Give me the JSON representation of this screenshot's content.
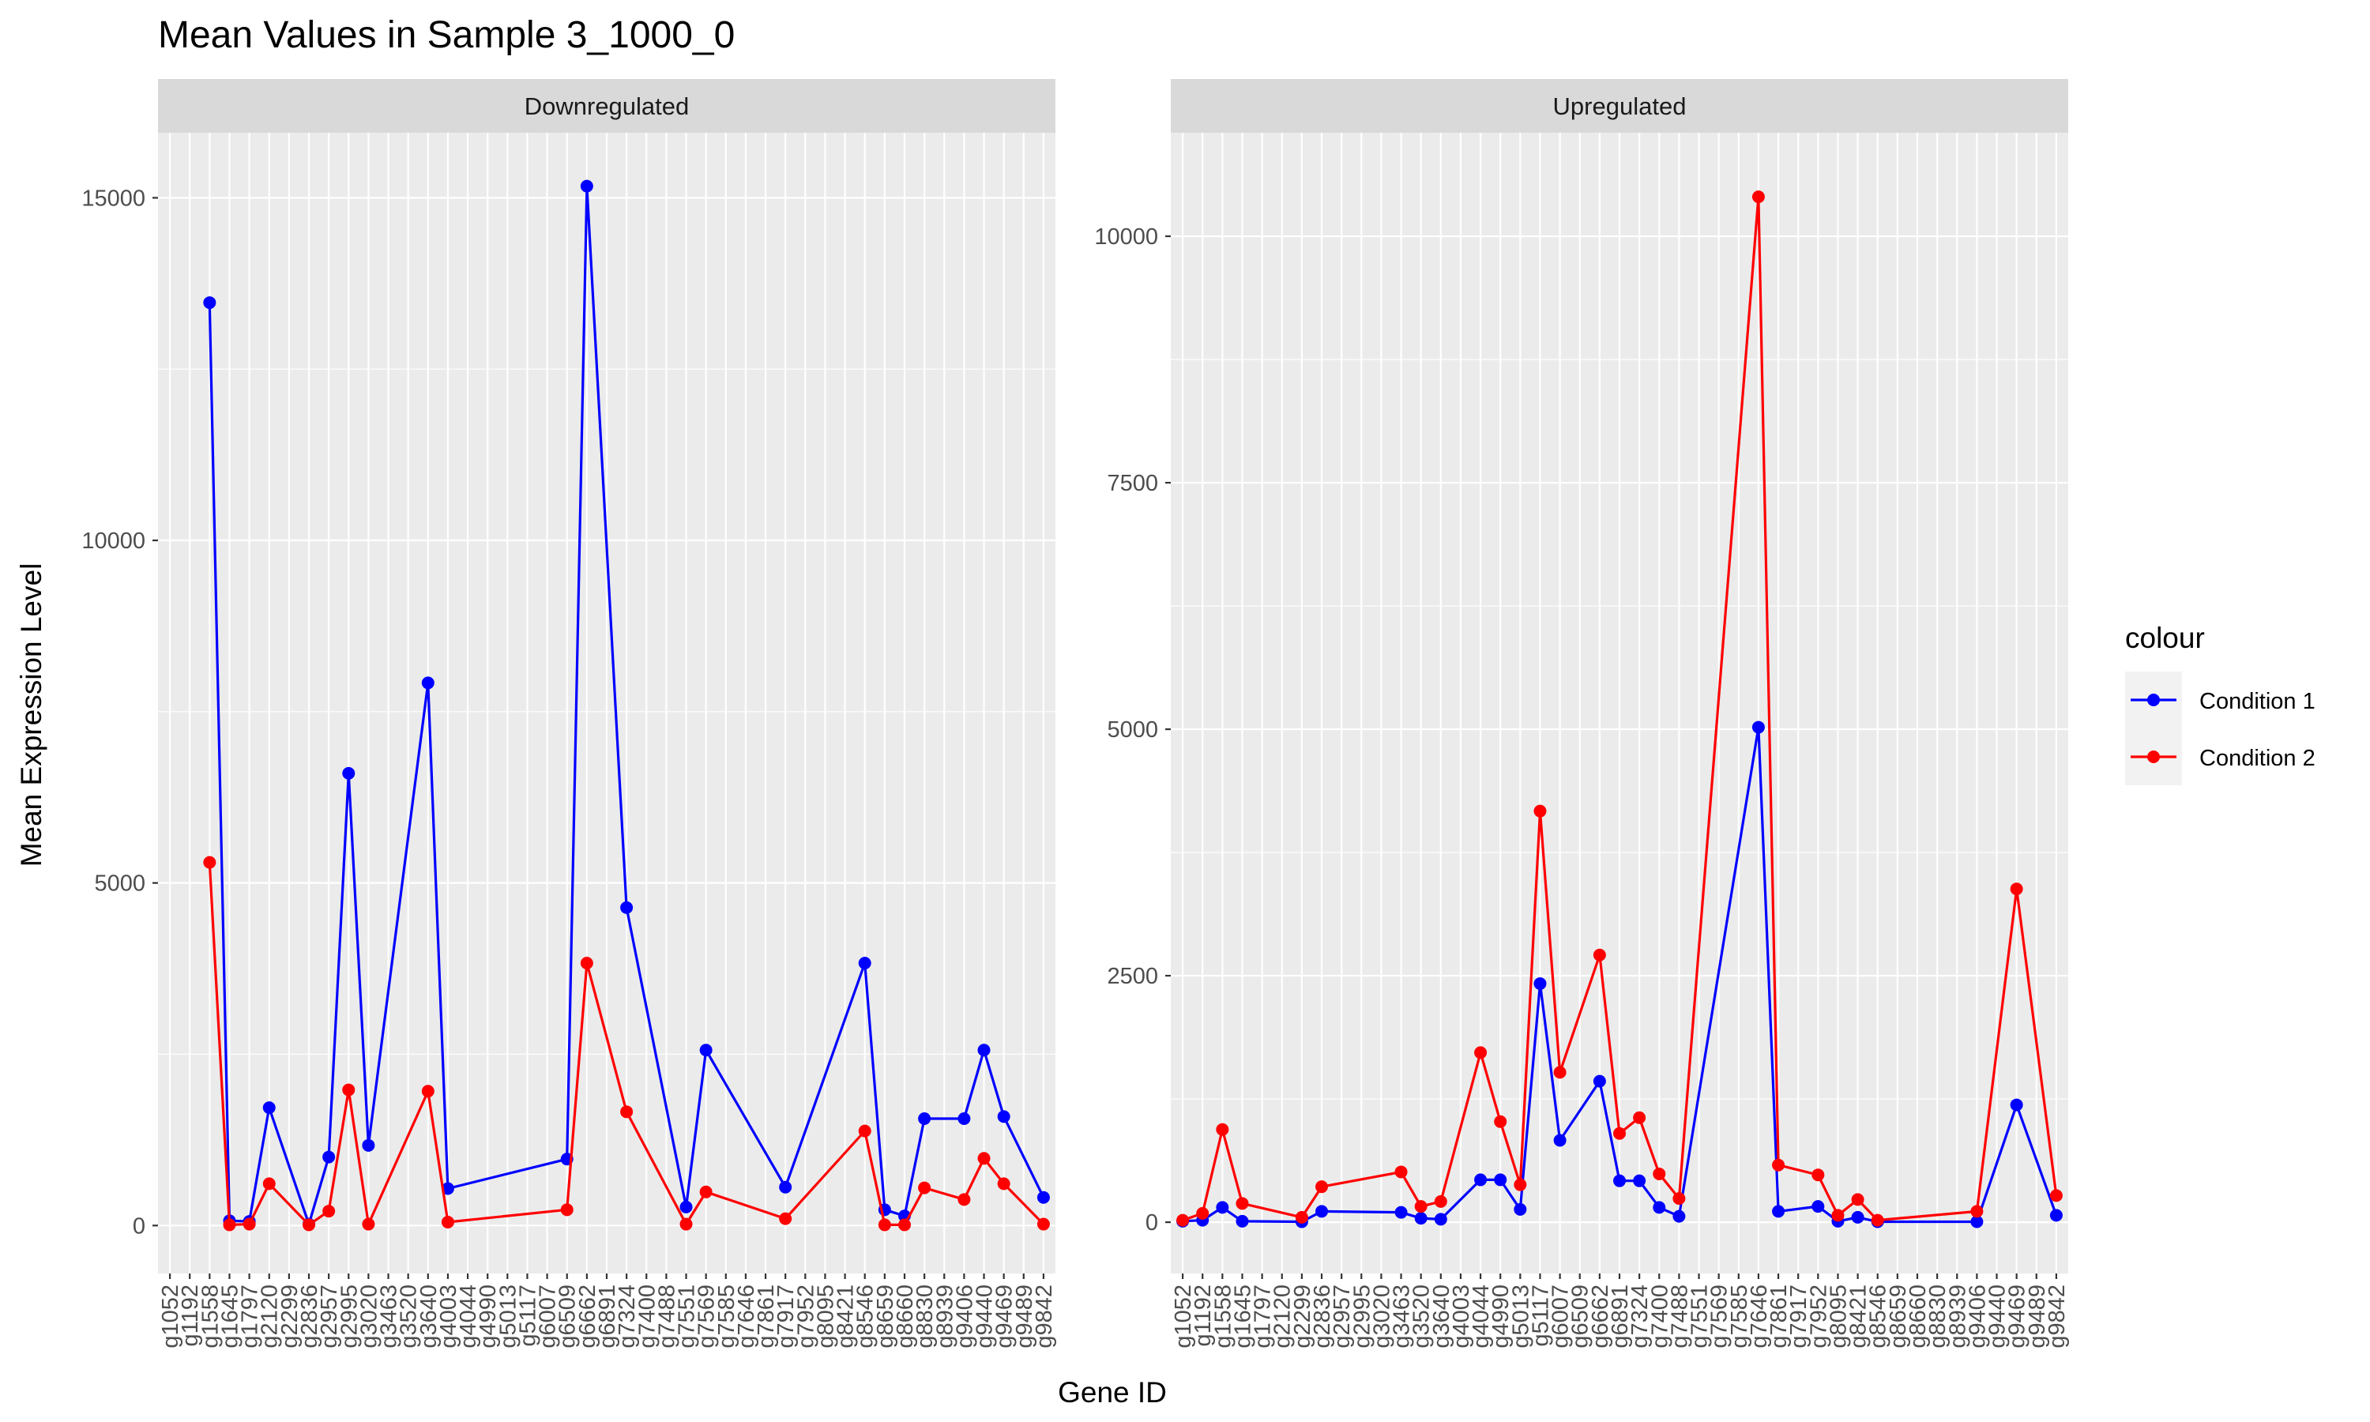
{
  "chart_data": {
    "type": "line",
    "title": "Mean Values in Sample 3_1000_0",
    "xlabel": "Gene ID",
    "ylabel": "Mean Expression Level",
    "legend": {
      "title": "colour",
      "position": "right",
      "entries": [
        {
          "name": "Condition 1",
          "color": "#0000ff"
        },
        {
          "name": "Condition 2",
          "color": "#ff0000"
        }
      ]
    },
    "categories": [
      "g1052",
      "g1192",
      "g1558",
      "g1645",
      "g1797",
      "g2120",
      "g2299",
      "g2836",
      "g2957",
      "g2995",
      "g3020",
      "g3463",
      "g3520",
      "g3640",
      "g4003",
      "g4044",
      "g4990",
      "g5013",
      "g5117",
      "g6007",
      "g6509",
      "g6662",
      "g6891",
      "g7324",
      "g7400",
      "g7488",
      "g7551",
      "g7569",
      "g7585",
      "g7646",
      "g7861",
      "g7917",
      "g7952",
      "g8095",
      "g8421",
      "g8546",
      "g8659",
      "g8660",
      "g8830",
      "g8939",
      "g9406",
      "g9440",
      "g9469",
      "g9489",
      "g9842"
    ],
    "facets": [
      {
        "strip": "Downregulated",
        "ylim": [
          -700,
          15950
        ],
        "yticks": [
          0,
          5000,
          10000,
          15000
        ],
        "series": [
          {
            "name": "Condition 1",
            "color": "#0000ff",
            "points": [
              {
                "x": "g1558",
                "y": 13470
              },
              {
                "x": "g1645",
                "y": 70
              },
              {
                "x": "g1797",
                "y": 60
              },
              {
                "x": "g2120",
                "y": 1720
              },
              {
                "x": "g2836",
                "y": 20
              },
              {
                "x": "g2957",
                "y": 1000
              },
              {
                "x": "g2995",
                "y": 6600
              },
              {
                "x": "g3020",
                "y": 1170
              },
              {
                "x": "g3640",
                "y": 7920
              },
              {
                "x": "g4003",
                "y": 540
              },
              {
                "x": "g6509",
                "y": 970
              },
              {
                "x": "g6662",
                "y": 15170
              },
              {
                "x": "g7324",
                "y": 4640
              },
              {
                "x": "g7551",
                "y": 270
              },
              {
                "x": "g7569",
                "y": 2560
              },
              {
                "x": "g7917",
                "y": 560
              },
              {
                "x": "g8546",
                "y": 3830
              },
              {
                "x": "g8659",
                "y": 230
              },
              {
                "x": "g8660",
                "y": 140
              },
              {
                "x": "g8830",
                "y": 1560
              },
              {
                "x": "g9406",
                "y": 1560
              },
              {
                "x": "g9440",
                "y": 2560
              },
              {
                "x": "g9469",
                "y": 1590
              },
              {
                "x": "g9842",
                "y": 410
              }
            ]
          },
          {
            "name": "Condition 2",
            "color": "#ff0000",
            "points": [
              {
                "x": "g1558",
                "y": 5300
              },
              {
                "x": "g1645",
                "y": 10
              },
              {
                "x": "g1797",
                "y": 20
              },
              {
                "x": "g2120",
                "y": 610
              },
              {
                "x": "g2836",
                "y": 10
              },
              {
                "x": "g2957",
                "y": 210
              },
              {
                "x": "g2995",
                "y": 1980
              },
              {
                "x": "g3020",
                "y": 20
              },
              {
                "x": "g3640",
                "y": 1960
              },
              {
                "x": "g4003",
                "y": 50
              },
              {
                "x": "g6509",
                "y": 230
              },
              {
                "x": "g6662",
                "y": 3830
              },
              {
                "x": "g7324",
                "y": 1660
              },
              {
                "x": "g7551",
                "y": 20
              },
              {
                "x": "g7569",
                "y": 490
              },
              {
                "x": "g7917",
                "y": 100
              },
              {
                "x": "g8546",
                "y": 1380
              },
              {
                "x": "g8659",
                "y": 10
              },
              {
                "x": "g8660",
                "y": 10
              },
              {
                "x": "g8830",
                "y": 550
              },
              {
                "x": "g9406",
                "y": 380
              },
              {
                "x": "g9440",
                "y": 980
              },
              {
                "x": "g9469",
                "y": 610
              },
              {
                "x": "g9842",
                "y": 20
              }
            ]
          }
        ]
      },
      {
        "strip": "Upregulated",
        "ylim": [
          -520,
          11050
        ],
        "yticks": [
          0,
          2500,
          5000,
          7500,
          10000
        ],
        "series": [
          {
            "name": "Condition 1",
            "color": "#0000ff",
            "points": [
              {
                "x": "g1052",
                "y": 10
              },
              {
                "x": "g1192",
                "y": 20
              },
              {
                "x": "g1558",
                "y": 150
              },
              {
                "x": "g1645",
                "y": 10
              },
              {
                "x": "g2299",
                "y": 5
              },
              {
                "x": "g2836",
                "y": 110
              },
              {
                "x": "g3463",
                "y": 100
              },
              {
                "x": "g3520",
                "y": 40
              },
              {
                "x": "g3640",
                "y": 30
              },
              {
                "x": "g4044",
                "y": 430
              },
              {
                "x": "g4990",
                "y": 430
              },
              {
                "x": "g5013",
                "y": 130
              },
              {
                "x": "g5117",
                "y": 2420
              },
              {
                "x": "g6007",
                "y": 830
              },
              {
                "x": "g6662",
                "y": 1430
              },
              {
                "x": "g6891",
                "y": 420
              },
              {
                "x": "g7324",
                "y": 420
              },
              {
                "x": "g7400",
                "y": 150
              },
              {
                "x": "g7488",
                "y": 60
              },
              {
                "x": "g7646",
                "y": 5020
              },
              {
                "x": "g7861",
                "y": 110
              },
              {
                "x": "g7952",
                "y": 160
              },
              {
                "x": "g8095",
                "y": 10
              },
              {
                "x": "g8421",
                "y": 50
              },
              {
                "x": "g8546",
                "y": 5
              },
              {
                "x": "g9406",
                "y": 5
              },
              {
                "x": "g9469",
                "y": 1190
              },
              {
                "x": "g9842",
                "y": 70
              }
            ]
          },
          {
            "name": "Condition 2",
            "color": "#ff0000",
            "points": [
              {
                "x": "g1052",
                "y": 20
              },
              {
                "x": "g1192",
                "y": 90
              },
              {
                "x": "g1558",
                "y": 940
              },
              {
                "x": "g1645",
                "y": 190
              },
              {
                "x": "g2299",
                "y": 50
              },
              {
                "x": "g2836",
                "y": 360
              },
              {
                "x": "g3463",
                "y": 510
              },
              {
                "x": "g3520",
                "y": 160
              },
              {
                "x": "g3640",
                "y": 210
              },
              {
                "x": "g4044",
                "y": 1720
              },
              {
                "x": "g4990",
                "y": 1020
              },
              {
                "x": "g5013",
                "y": 380
              },
              {
                "x": "g5117",
                "y": 4170
              },
              {
                "x": "g6007",
                "y": 1520
              },
              {
                "x": "g6662",
                "y": 2710
              },
              {
                "x": "g6891",
                "y": 900
              },
              {
                "x": "g7324",
                "y": 1060
              },
              {
                "x": "g7400",
                "y": 490
              },
              {
                "x": "g7488",
                "y": 240
              },
              {
                "x": "g7646",
                "y": 10400
              },
              {
                "x": "g7861",
                "y": 580
              },
              {
                "x": "g7952",
                "y": 480
              },
              {
                "x": "g8095",
                "y": 70
              },
              {
                "x": "g8421",
                "y": 230
              },
              {
                "x": "g8546",
                "y": 20
              },
              {
                "x": "g9406",
                "y": 110
              },
              {
                "x": "g9469",
                "y": 3380
              },
              {
                "x": "g9842",
                "y": 270
              }
            ]
          }
        ]
      }
    ],
    "grid": true
  }
}
